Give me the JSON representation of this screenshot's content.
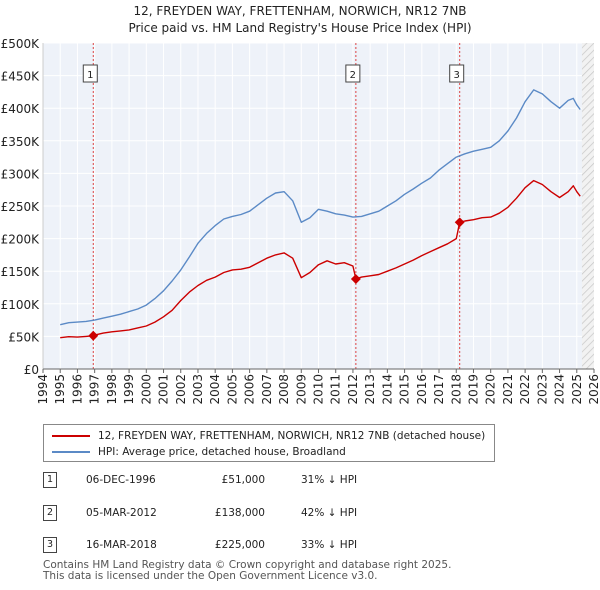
{
  "chart_data": {
    "type": "line",
    "title": "12, FREYDEN WAY, FRETTENHAM, NORWICH, NR12 7NB",
    "subtitle": "Price paid vs. HM Land Registry's House Price Index (HPI)",
    "xlim": [
      1994,
      2026
    ],
    "ylim": [
      0,
      500000
    ],
    "x_ticks": [
      "1994",
      "1995",
      "1996",
      "1997",
      "1998",
      "1999",
      "2000",
      "2001",
      "2002",
      "2003",
      "2004",
      "2005",
      "2006",
      "2007",
      "2008",
      "2009",
      "2010",
      "2011",
      "2012",
      "2013",
      "2014",
      "2015",
      "2016",
      "2017",
      "2018",
      "2019",
      "2020",
      "2021",
      "2022",
      "2023",
      "2024",
      "2025",
      "2026"
    ],
    "y_ticks": [
      {
        "value": 0,
        "label": "£0"
      },
      {
        "value": 50000,
        "label": "£50K"
      },
      {
        "value": 100000,
        "label": "£100K"
      },
      {
        "value": 150000,
        "label": "£150K"
      },
      {
        "value": 200000,
        "label": "£200K"
      },
      {
        "value": 250000,
        "label": "£250K"
      },
      {
        "value": 300000,
        "label": "£300K"
      },
      {
        "value": 350000,
        "label": "£350K"
      },
      {
        "value": 400000,
        "label": "£400K"
      },
      {
        "value": 450000,
        "label": "£450K"
      },
      {
        "value": 500000,
        "label": "£500K"
      }
    ],
    "future_shade_from": 2025.3,
    "series": [
      {
        "name": "12, FREYDEN WAY, FRETTENHAM, NORWICH, NR12 7NB (detached house)",
        "color": "#cc0000",
        "points": [
          [
            1995.0,
            48000
          ],
          [
            1995.5,
            49500
          ],
          [
            1996.0,
            49000
          ],
          [
            1996.5,
            50000
          ],
          [
            1996.92,
            51000
          ],
          [
            1997.0,
            52000
          ],
          [
            1997.5,
            55000
          ],
          [
            1998.0,
            57000
          ],
          [
            1998.5,
            58500
          ],
          [
            1999.0,
            60000
          ],
          [
            1999.5,
            63000
          ],
          [
            2000.0,
            66000
          ],
          [
            2000.5,
            72000
          ],
          [
            2001.0,
            80000
          ],
          [
            2001.5,
            90000
          ],
          [
            2002.0,
            105000
          ],
          [
            2002.5,
            118000
          ],
          [
            2003.0,
            128000
          ],
          [
            2003.5,
            136000
          ],
          [
            2004.0,
            141000
          ],
          [
            2004.5,
            148000
          ],
          [
            2005.0,
            152000
          ],
          [
            2005.5,
            153000
          ],
          [
            2006.0,
            156000
          ],
          [
            2006.5,
            163000
          ],
          [
            2007.0,
            170000
          ],
          [
            2007.5,
            175000
          ],
          [
            2008.0,
            178000
          ],
          [
            2008.5,
            170000
          ],
          [
            2009.0,
            140000
          ],
          [
            2009.5,
            148000
          ],
          [
            2010.0,
            160000
          ],
          [
            2010.5,
            166000
          ],
          [
            2011.0,
            161000
          ],
          [
            2011.5,
            163000
          ],
          [
            2012.0,
            158000
          ],
          [
            2012.17,
            138000
          ],
          [
            2012.5,
            141000
          ],
          [
            2013.0,
            143000
          ],
          [
            2013.5,
            145000
          ],
          [
            2014.0,
            150000
          ],
          [
            2014.5,
            155000
          ],
          [
            2015.0,
            161000
          ],
          [
            2015.5,
            167000
          ],
          [
            2016.0,
            174000
          ],
          [
            2016.5,
            180000
          ],
          [
            2017.0,
            186000
          ],
          [
            2017.5,
            192000
          ],
          [
            2018.0,
            200000
          ],
          [
            2018.2,
            225000
          ],
          [
            2018.5,
            227000
          ],
          [
            2019.0,
            229000
          ],
          [
            2019.5,
            232000
          ],
          [
            2020.0,
            233000
          ],
          [
            2020.5,
            239000
          ],
          [
            2021.0,
            248000
          ],
          [
            2021.5,
            262000
          ],
          [
            2022.0,
            278000
          ],
          [
            2022.5,
            289000
          ],
          [
            2023.0,
            283000
          ],
          [
            2023.5,
            272000
          ],
          [
            2024.0,
            263000
          ],
          [
            2024.5,
            272000
          ],
          [
            2024.8,
            281000
          ],
          [
            2025.0,
            272000
          ],
          [
            2025.2,
            265000
          ]
        ]
      },
      {
        "name": "HPI: Average price, detached house, Broadland",
        "color": "#5b8ac6",
        "points": [
          [
            1995.0,
            68000
          ],
          [
            1995.5,
            71000
          ],
          [
            1996.0,
            72000
          ],
          [
            1996.5,
            73000
          ],
          [
            1997.0,
            75000
          ],
          [
            1997.5,
            78000
          ],
          [
            1998.0,
            81000
          ],
          [
            1998.5,
            84000
          ],
          [
            1999.0,
            88000
          ],
          [
            1999.5,
            92000
          ],
          [
            2000.0,
            98000
          ],
          [
            2000.5,
            108000
          ],
          [
            2001.0,
            120000
          ],
          [
            2001.5,
            135000
          ],
          [
            2002.0,
            152000
          ],
          [
            2002.5,
            172000
          ],
          [
            2003.0,
            193000
          ],
          [
            2003.5,
            208000
          ],
          [
            2004.0,
            220000
          ],
          [
            2004.5,
            230000
          ],
          [
            2005.0,
            234000
          ],
          [
            2005.5,
            237000
          ],
          [
            2006.0,
            242000
          ],
          [
            2006.5,
            252000
          ],
          [
            2007.0,
            262000
          ],
          [
            2007.5,
            270000
          ],
          [
            2008.0,
            272000
          ],
          [
            2008.5,
            258000
          ],
          [
            2009.0,
            225000
          ],
          [
            2009.5,
            232000
          ],
          [
            2010.0,
            245000
          ],
          [
            2010.5,
            242000
          ],
          [
            2011.0,
            238000
          ],
          [
            2011.5,
            236000
          ],
          [
            2012.0,
            233000
          ],
          [
            2012.5,
            234000
          ],
          [
            2013.0,
            238000
          ],
          [
            2013.5,
            242000
          ],
          [
            2014.0,
            250000
          ],
          [
            2014.5,
            258000
          ],
          [
            2015.0,
            268000
          ],
          [
            2015.5,
            276000
          ],
          [
            2016.0,
            285000
          ],
          [
            2016.5,
            293000
          ],
          [
            2017.0,
            305000
          ],
          [
            2017.5,
            315000
          ],
          [
            2018.0,
            325000
          ],
          [
            2018.5,
            330000
          ],
          [
            2019.0,
            334000
          ],
          [
            2019.5,
            337000
          ],
          [
            2020.0,
            340000
          ],
          [
            2020.5,
            350000
          ],
          [
            2021.0,
            365000
          ],
          [
            2021.5,
            385000
          ],
          [
            2022.0,
            410000
          ],
          [
            2022.5,
            428000
          ],
          [
            2023.0,
            422000
          ],
          [
            2023.5,
            410000
          ],
          [
            2024.0,
            400000
          ],
          [
            2024.5,
            412000
          ],
          [
            2024.8,
            415000
          ],
          [
            2025.0,
            405000
          ],
          [
            2025.2,
            398000
          ]
        ]
      }
    ],
    "sales": [
      {
        "label": "1",
        "x": 1996.92,
        "price": 51000
      },
      {
        "label": "2",
        "x": 2012.17,
        "price": 138000
      },
      {
        "label": "3",
        "x": 2018.2,
        "price": 225000
      }
    ]
  },
  "legend": {
    "property_label": "12, FREYDEN WAY, FRETTENHAM, NORWICH, NR12 7NB (detached house)",
    "hpi_label": "HPI: Average price, detached house, Broadland",
    "property_color": "#cc0000",
    "hpi_color": "#5b8ac6"
  },
  "sales_table": [
    {
      "num": "1",
      "date": "06-DEC-1996",
      "price": "£51,000",
      "hpi": "31% ↓ HPI"
    },
    {
      "num": "2",
      "date": "05-MAR-2012",
      "price": "£138,000",
      "hpi": "42% ↓ HPI"
    },
    {
      "num": "3",
      "date": "16-MAR-2018",
      "price": "£225,000",
      "hpi": "33% ↓ HPI"
    }
  ],
  "footer": {
    "line1": "Contains HM Land Registry data © Crown copyright and database right 2025.",
    "line2": "This data is licensed under the Open Government Licence v3.0."
  }
}
